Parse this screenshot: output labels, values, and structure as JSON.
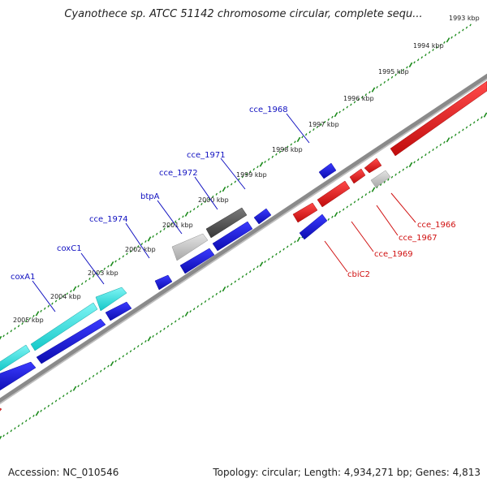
{
  "title": "Cyanothece sp. ATCC 51142 chromosome circular, complete sequ...",
  "footer": {
    "accession": "Accession: NC_010546",
    "summary": "Topology: circular; Length: 4,934,271 bp; Genes: 4,813"
  },
  "scale_labels": [
    "1993 kbp",
    "1994 kbp",
    "1995 kbp",
    "1996 kbp",
    "1997 kbp",
    "1998 kbp",
    "1999 kbp",
    "2000 kbp",
    "2001 kbp",
    "2002 kbp",
    "2003 kbp",
    "2004 kbp",
    "2005 kbp"
  ],
  "colors": {
    "backbone": "#808080",
    "scale": "#1a8a1a",
    "cyan": "#22e0e0",
    "blue": "#1a1ad8",
    "red": "#e01414",
    "gray_light": "#c8c8c8",
    "gray_dark": "#505050",
    "blue_label": "#1010c0",
    "red_label": "#d01010"
  },
  "gene_labels": [
    {
      "name": "cce_1968",
      "color": "blue"
    },
    {
      "name": "cce_1971",
      "color": "blue"
    },
    {
      "name": "cce_1972",
      "color": "blue"
    },
    {
      "name": "btpA",
      "color": "blue"
    },
    {
      "name": "cce_1974",
      "color": "blue"
    },
    {
      "name": "coxC1",
      "color": "blue"
    },
    {
      "name": "coxA1",
      "color": "blue"
    },
    {
      "name": "cce_1966",
      "color": "red"
    },
    {
      "name": "cce_1967",
      "color": "red"
    },
    {
      "name": "cce_1969",
      "color": "red"
    },
    {
      "name": "cbiC2",
      "color": "red"
    }
  ]
}
